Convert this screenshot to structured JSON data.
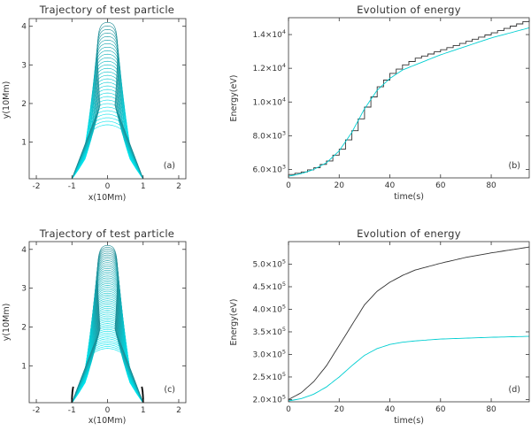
{
  "panels": [
    {
      "id": "a",
      "title": "Trajectory of test particle",
      "xlabel": "x(10Mm)",
      "ylabel": "y(10Mm)",
      "label": "(a)",
      "xlim": [
        -2.2,
        2.2
      ],
      "ylim": [
        0.05,
        4.2
      ],
      "xticks": [
        "-2",
        "-1",
        "0",
        "1",
        "2"
      ],
      "yticks": [
        "1",
        "2",
        "3",
        "4"
      ]
    },
    {
      "id": "b",
      "title": "Evolution of energy",
      "xlabel": "time(s)",
      "ylabel": "Energy(eV)",
      "label": "(b)",
      "xlim": [
        0,
        95
      ],
      "ylim": [
        5500,
        15000
      ],
      "xticks": [
        "0",
        "20",
        "40",
        "60",
        "80"
      ],
      "yticks": [
        {
          "m": "6.0",
          "e": "3"
        },
        {
          "m": "8.0",
          "e": "3"
        },
        {
          "m": "1.0",
          "e": "4"
        },
        {
          "m": "1.2",
          "e": "4"
        },
        {
          "m": "1.4",
          "e": "4"
        }
      ]
    },
    {
      "id": "c",
      "title": "Trajectory of test particle",
      "xlabel": "x(10Mm)",
      "ylabel": "y(10Mm)",
      "label": "(c)",
      "xlim": [
        -2.2,
        2.2
      ],
      "ylim": [
        0.05,
        4.2
      ],
      "xticks": [
        "-2",
        "-1",
        "0",
        "1",
        "2"
      ],
      "yticks": [
        "1",
        "2",
        "3",
        "4"
      ]
    },
    {
      "id": "d",
      "title": "Evolution of energy",
      "xlabel": "time(s)",
      "ylabel": "Energy(eV)",
      "label": "(d)",
      "xlim": [
        0,
        95
      ],
      "ylim": [
        195000,
        550000
      ],
      "xticks": [
        "0",
        "20",
        "40",
        "60",
        "80"
      ],
      "yticks": [
        {
          "m": "2.0",
          "e": "5"
        },
        {
          "m": "2.5",
          "e": "5"
        },
        {
          "m": "3.0",
          "e": "5"
        },
        {
          "m": "3.5",
          "e": "5"
        },
        {
          "m": "4.0",
          "e": "5"
        },
        {
          "m": "4.5",
          "e": "5"
        },
        {
          "m": "5.0",
          "e": "5"
        }
      ]
    }
  ],
  "chart_data": [
    {
      "type": "line",
      "panel": "a",
      "title": "Trajectory of test particle",
      "xlabel": "x(10Mm)",
      "ylabel": "y(10Mm)",
      "xlim": [
        -2.2,
        2.2
      ],
      "ylim": [
        0.05,
        4.2
      ],
      "description_values": {
        "footpoint_x": [
          -1.0,
          1.0
        ],
        "min_loop_top_y": 1.45,
        "max_loop_top_y": 4.1,
        "loop_count": 30
      },
      "colors": {
        "inner": "#00e5ee",
        "outer": "#1e8b94"
      }
    },
    {
      "type": "line",
      "panel": "b",
      "title": "Evolution of energy",
      "xlabel": "time(s)",
      "ylabel": "Energy(eV)",
      "xlim": [
        0,
        95
      ],
      "ylim": [
        5500,
        15000
      ],
      "x": [
        0,
        5,
        10,
        15,
        20,
        25,
        30,
        35,
        40,
        45,
        50,
        60,
        70,
        80,
        95
      ],
      "series": [
        {
          "color": "#333333",
          "step": true,
          "values": [
            5700,
            5850,
            6100,
            6500,
            7200,
            8300,
            9700,
            10900,
            11700,
            12200,
            12600,
            13100,
            13600,
            14100,
            14900
          ]
        },
        {
          "color": "#00ced1",
          "values": [
            5600,
            5750,
            6000,
            6400,
            7100,
            8200,
            9600,
            10700,
            11400,
            11900,
            12200,
            12800,
            13300,
            13800,
            14400
          ]
        }
      ]
    },
    {
      "type": "line",
      "panel": "c",
      "title": "Trajectory of test particle",
      "xlabel": "x(10Mm)",
      "ylabel": "y(10Mm)",
      "xlim": [
        -2.2,
        2.2
      ],
      "ylim": [
        0.05,
        4.2
      ],
      "description_values": {
        "footpoint_x": [
          -1.0,
          1.0
        ],
        "min_loop_top_y": 1.45,
        "max_loop_top_y": 4.1,
        "loop_count": 55
      },
      "colors": {
        "inner": "#00e5ee",
        "outer": "#1e8b94",
        "footpoint": "#000000"
      }
    },
    {
      "type": "line",
      "panel": "d",
      "title": "Evolution of energy",
      "xlabel": "time(s)",
      "ylabel": "Energy(eV)",
      "xlim": [
        0,
        95
      ],
      "ylim": [
        195000,
        550000
      ],
      "x": [
        0,
        5,
        10,
        15,
        20,
        25,
        30,
        35,
        40,
        45,
        50,
        60,
        70,
        80,
        95
      ],
      "series": [
        {
          "color": "#333333",
          "values": [
            200000,
            215000,
            240000,
            275000,
            320000,
            365000,
            410000,
            440000,
            460000,
            475000,
            487000,
            502000,
            515000,
            525000,
            538000
          ]
        },
        {
          "color": "#00ced1",
          "values": [
            197000,
            202000,
            212000,
            228000,
            250000,
            275000,
            298000,
            313000,
            322000,
            327000,
            330000,
            334000,
            336000,
            338000,
            340000
          ]
        }
      ]
    }
  ]
}
